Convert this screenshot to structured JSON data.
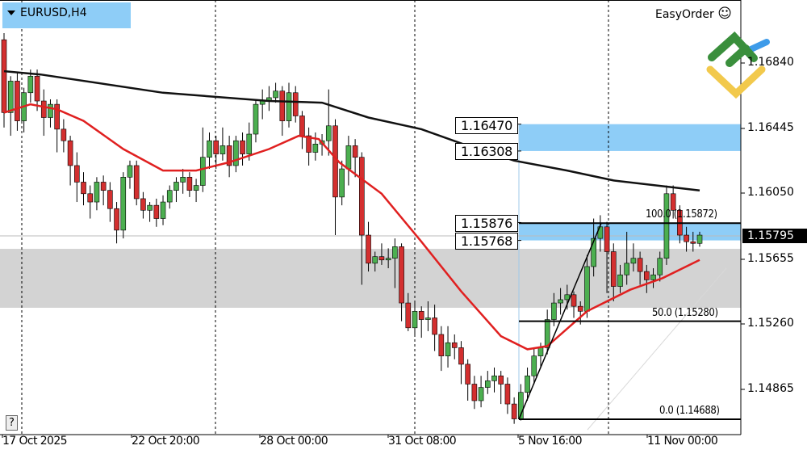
{
  "header": {
    "symbol_timeframe": "EURUSD,H4",
    "plugin": "EasyOrder",
    "plugin_icon": "smiley-icon",
    "help_label": "?"
  },
  "colors": {
    "bull": "#4caf50",
    "bear": "#d32f2f",
    "ma_slow": "#111111",
    "ma_fast": "#e02020",
    "zone_blue": "#8ecdf7",
    "zone_gray": "#d3d3d3"
  },
  "chart_data": {
    "type": "candlestick",
    "title": "EURUSD,H4",
    "ylim": [
      1.14595,
      1.1722
    ],
    "y_ticks": [
      "1.16840",
      "1.16445",
      "1.16050",
      "1.15655",
      "1.15260",
      "1.14865"
    ],
    "x_ticks": [
      "17 Oct 2025",
      "22 Oct 20:00",
      "28 Oct 00:00",
      "31 Oct 08:00",
      "5 Nov 16:00",
      "11 Nov 00:00"
    ],
    "current_price": "1.15795",
    "candles_ohlc": [
      [
        1.1698,
        1.1702,
        1.1645,
        1.1654
      ],
      [
        1.1654,
        1.1676,
        1.164,
        1.1673
      ],
      [
        1.1673,
        1.1678,
        1.1643,
        1.1649
      ],
      [
        1.1649,
        1.1669,
        1.1642,
        1.1666
      ],
      [
        1.1666,
        1.168,
        1.166,
        1.1676
      ],
      [
        1.1676,
        1.168,
        1.1655,
        1.1661
      ],
      [
        1.1661,
        1.1668,
        1.164,
        1.1651
      ],
      [
        1.1651,
        1.1662,
        1.1645,
        1.1659
      ],
      [
        1.1659,
        1.1662,
        1.163,
        1.1644
      ],
      [
        1.1644,
        1.165,
        1.163,
        1.1637
      ],
      [
        1.1637,
        1.164,
        1.161,
        1.1622
      ],
      [
        1.1622,
        1.163,
        1.16,
        1.1612
      ],
      [
        1.1612,
        1.1618,
        1.1598,
        1.1605
      ],
      [
        1.1605,
        1.161,
        1.159,
        1.16
      ],
      [
        1.16,
        1.1615,
        1.1595,
        1.1612
      ],
      [
        1.1612,
        1.1616,
        1.1598,
        1.1607
      ],
      [
        1.1607,
        1.1612,
        1.1588,
        1.1596
      ],
      [
        1.1596,
        1.16,
        1.1575,
        1.1583
      ],
      [
        1.1583,
        1.1618,
        1.1578,
        1.1615
      ],
      [
        1.1615,
        1.1625,
        1.1608,
        1.1622
      ],
      [
        1.1622,
        1.1625,
        1.1598,
        1.1602
      ],
      [
        1.1602,
        1.1606,
        1.159,
        1.1595
      ],
      [
        1.1595,
        1.16,
        1.1588,
        1.1598
      ],
      [
        1.1598,
        1.1602,
        1.1585,
        1.159
      ],
      [
        1.159,
        1.1604,
        1.1586,
        1.16
      ],
      [
        1.16,
        1.161,
        1.1596,
        1.1607
      ],
      [
        1.1607,
        1.1615,
        1.16,
        1.1612
      ],
      [
        1.1612,
        1.162,
        1.1605,
        1.1615
      ],
      [
        1.1615,
        1.1618,
        1.1603,
        1.1607
      ],
      [
        1.1607,
        1.1614,
        1.16,
        1.161
      ],
      [
        1.161,
        1.1645,
        1.1606,
        1.1627
      ],
      [
        1.1627,
        1.1642,
        1.162,
        1.1637
      ],
      [
        1.1637,
        1.164,
        1.162,
        1.1629
      ],
      [
        1.1629,
        1.1645,
        1.1625,
        1.1634
      ],
      [
        1.1634,
        1.164,
        1.1615,
        1.1622
      ],
      [
        1.1622,
        1.164,
        1.1618,
        1.1637
      ],
      [
        1.1637,
        1.1642,
        1.1622,
        1.1629
      ],
      [
        1.1629,
        1.1648,
        1.1625,
        1.1641
      ],
      [
        1.1641,
        1.1662,
        1.1636,
        1.1659
      ],
      [
        1.1659,
        1.1668,
        1.165,
        1.1661
      ],
      [
        1.1661,
        1.167,
        1.1655,
        1.1663
      ],
      [
        1.1663,
        1.1672,
        1.166,
        1.1667
      ],
      [
        1.1667,
        1.167,
        1.164,
        1.1649
      ],
      [
        1.1649,
        1.1672,
        1.1645,
        1.1666
      ],
      [
        1.1666,
        1.167,
        1.1648,
        1.1652
      ],
      [
        1.1652,
        1.1655,
        1.1632,
        1.164
      ],
      [
        1.164,
        1.1645,
        1.1622,
        1.163
      ],
      [
        1.163,
        1.1642,
        1.1625,
        1.1635
      ],
      [
        1.1635,
        1.1641,
        1.1628,
        1.1637
      ],
      [
        1.1637,
        1.1668,
        1.1628,
        1.1646
      ],
      [
        1.1646,
        1.165,
        1.158,
        1.1603
      ],
      [
        1.1603,
        1.1625,
        1.1598,
        1.162
      ],
      [
        1.162,
        1.164,
        1.161,
        1.1634
      ],
      [
        1.1634,
        1.1638,
        1.1615,
        1.1627
      ],
      [
        1.1627,
        1.163,
        1.155,
        1.158
      ],
      [
        1.158,
        1.1588,
        1.1558,
        1.1563
      ],
      [
        1.1563,
        1.157,
        1.1558,
        1.1567
      ],
      [
        1.1567,
        1.1575,
        1.1562,
        1.1565
      ],
      [
        1.1565,
        1.1572,
        1.156,
        1.1566
      ],
      [
        1.1566,
        1.1578,
        1.1548,
        1.1573
      ],
      [
        1.1573,
        1.1575,
        1.1528,
        1.1539
      ],
      [
        1.1539,
        1.1545,
        1.1522,
        1.1524
      ],
      [
        1.1524,
        1.154,
        1.152,
        1.1534
      ],
      [
        1.1534,
        1.1537,
        1.1518,
        1.1529
      ],
      [
        1.1529,
        1.154,
        1.1522,
        1.153
      ],
      [
        1.153,
        1.1538,
        1.151,
        1.152
      ],
      [
        1.152,
        1.1525,
        1.1498,
        1.1507
      ],
      [
        1.1507,
        1.1525,
        1.15,
        1.1515
      ],
      [
        1.1515,
        1.152,
        1.1505,
        1.1512
      ],
      [
        1.1512,
        1.1516,
        1.149,
        1.1502
      ],
      [
        1.1502,
        1.1505,
        1.148,
        1.149
      ],
      [
        1.149,
        1.1495,
        1.1475,
        1.148
      ],
      [
        1.148,
        1.1495,
        1.1476,
        1.1488
      ],
      [
        1.1488,
        1.1498,
        1.1484,
        1.1492
      ],
      [
        1.1492,
        1.15,
        1.1485,
        1.1495
      ],
      [
        1.1495,
        1.1498,
        1.1478,
        1.149
      ],
      [
        1.149,
        1.1494,
        1.1472,
        1.1478
      ],
      [
        1.1478,
        1.1482,
        1.1466,
        1.1469
      ],
      [
        1.1469,
        1.149,
        1.1468,
        1.1485
      ],
      [
        1.1485,
        1.15,
        1.148,
        1.1495
      ],
      [
        1.1495,
        1.1512,
        1.149,
        1.1507
      ],
      [
        1.1507,
        1.1515,
        1.15,
        1.1512
      ],
      [
        1.1512,
        1.1535,
        1.1508,
        1.1529
      ],
      [
        1.1529,
        1.1545,
        1.1525,
        1.1539
      ],
      [
        1.1539,
        1.1548,
        1.1532,
        1.1541
      ],
      [
        1.1541,
        1.155,
        1.1535,
        1.1544
      ],
      [
        1.1544,
        1.1546,
        1.153,
        1.1537
      ],
      [
        1.1537,
        1.154,
        1.1526,
        1.1534
      ],
      [
        1.1534,
        1.1568,
        1.153,
        1.1561
      ],
      [
        1.1561,
        1.159,
        1.1555,
        1.1578
      ],
      [
        1.1578,
        1.1592,
        1.157,
        1.1585
      ],
      [
        1.1585,
        1.1588,
        1.1545,
        1.157
      ],
      [
        1.157,
        1.1575,
        1.154,
        1.1549
      ],
      [
        1.1549,
        1.1562,
        1.1545,
        1.1556
      ],
      [
        1.1556,
        1.1582,
        1.155,
        1.1563
      ],
      [
        1.1563,
        1.1575,
        1.1558,
        1.1566
      ],
      [
        1.1566,
        1.157,
        1.155,
        1.1558
      ],
      [
        1.1558,
        1.1562,
        1.1545,
        1.1553
      ],
      [
        1.1553,
        1.156,
        1.1548,
        1.1556
      ],
      [
        1.1556,
        1.157,
        1.1552,
        1.1566
      ],
      [
        1.1566,
        1.161,
        1.1562,
        1.1605
      ],
      [
        1.1605,
        1.161,
        1.159,
        1.1595
      ],
      [
        1.1595,
        1.1598,
        1.1575,
        1.158
      ],
      [
        1.158,
        1.1585,
        1.157,
        1.1576
      ],
      [
        1.1576,
        1.1582,
        1.157,
        1.1575
      ],
      [
        1.1575,
        1.1582,
        1.1573,
        1.158
      ]
    ],
    "ma_slow": [
      [
        0,
        1.1679
      ],
      [
        5.5,
        1.1677
      ],
      [
        24,
        1.1666
      ],
      [
        40,
        1.1661
      ],
      [
        48,
        1.166
      ],
      [
        55,
        1.1651
      ],
      [
        63,
        1.1644
      ],
      [
        70,
        1.1634
      ],
      [
        77,
        1.1625
      ],
      [
        85,
        1.1619
      ],
      [
        92,
        1.1613
      ],
      [
        105,
        1.1607
      ]
    ],
    "ma_fast": [
      [
        0,
        1.1654
      ],
      [
        4,
        1.1659
      ],
      [
        8,
        1.1656
      ],
      [
        12,
        1.1649
      ],
      [
        18,
        1.1632
      ],
      [
        24,
        1.1619
      ],
      [
        29,
        1.1619
      ],
      [
        34,
        1.1624
      ],
      [
        40,
        1.1632
      ],
      [
        44.5,
        1.164
      ],
      [
        47.5,
        1.1638
      ],
      [
        50.6,
        1.1624
      ],
      [
        57,
        1.1605
      ],
      [
        63,
        1.1576
      ],
      [
        69,
        1.1546
      ],
      [
        75,
        1.1519
      ],
      [
        79,
        1.1511
      ],
      [
        82,
        1.1513
      ],
      [
        88,
        1.1534
      ],
      [
        94.5,
        1.1547
      ],
      [
        99.4,
        1.1554
      ],
      [
        105,
        1.1565
      ]
    ],
    "zones": [
      {
        "kind": "supply",
        "top": 1.1647,
        "bottom": 1.16308,
        "top_label": "1.16470",
        "bottom_label": "1.16308"
      },
      {
        "kind": "supply",
        "top": 1.15876,
        "bottom": 1.15768,
        "top_label": "1.15876",
        "bottom_label": "1.15768"
      },
      {
        "kind": "gray",
        "top": 1.15717,
        "bottom": 1.15361
      }
    ],
    "fibonacci": {
      "levels": [
        {
          "label": "100.0 (1.15872)",
          "price": 1.15872
        },
        {
          "label": "50.0 (1.15280)",
          "price": 1.1528
        },
        {
          "label": "0.0 (1.14688)",
          "price": 1.14688
        }
      ]
    }
  }
}
